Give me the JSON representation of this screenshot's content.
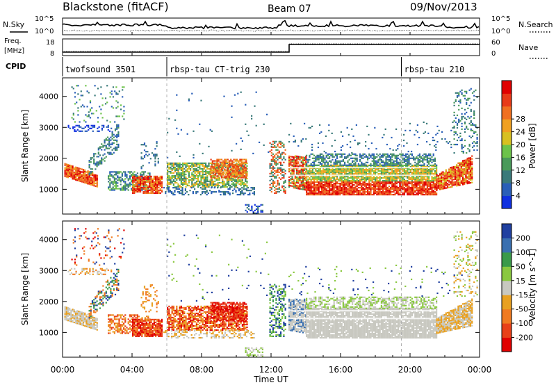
{
  "header": {
    "station": "Blackstone (fitACF)",
    "beam": "Beam 07",
    "date": "09/Nov/2013"
  },
  "noise_panel": {
    "left_label": "N.Sky",
    "right_label": "N.Search",
    "left_ticks": [
      "10^5",
      "10^0"
    ],
    "right_ticks": [
      "10^5",
      "10^0"
    ]
  },
  "freq_panel": {
    "left_label_line1": "Freq.",
    "left_label_line2": "[MHz]",
    "left_ticks": [
      "18",
      "8"
    ],
    "right_ticks": [
      "60",
      "0"
    ],
    "right_label": "Nave",
    "cpid_label": "CPID"
  },
  "cpid_segments": [
    {
      "start_hour": 0.0,
      "label": "twofsound 3501"
    },
    {
      "start_hour": 6.0,
      "label": "rbsp-tau CT-trig 230"
    },
    {
      "start_hour": 19.5,
      "label": "rbsp-tau 210"
    }
  ],
  "chart_data": [
    {
      "type": "heatmap",
      "name": "power",
      "ylabel": "Slant Range [km]",
      "ylim": [
        200,
        4600
      ],
      "yticks": [
        "1000",
        "2000",
        "3000",
        "4000"
      ],
      "xlim_hours": [
        0,
        24
      ],
      "colorbar_label": "Power [dB]",
      "colorbar_ticks": [
        "4",
        "8",
        "12",
        "16",
        "20",
        "24",
        "28"
      ],
      "colorbar_colors": [
        "#1030e0",
        "#2a5fb8",
        "#3a7a7a",
        "#4a9a5a",
        "#6cc34a",
        "#d8c020",
        "#f0a020",
        "#f07020",
        "#e83a18",
        "#e00000"
      ]
    },
    {
      "type": "heatmap",
      "name": "velocity",
      "ylabel": "Slant Range [km]",
      "ylim": [
        200,
        4600
      ],
      "yticks": [
        "1000",
        "2000",
        "3000",
        "4000"
      ],
      "xlim_hours": [
        0,
        24
      ],
      "colorbar_label": "Velocity [m s^-1]",
      "colorbar_ticks": [
        "200",
        "100",
        "50",
        "15",
        "-15",
        "-50",
        "-100",
        "-200"
      ],
      "colorbar_colors": [
        "#2040a0",
        "#3a70b0",
        "#3a9a4a",
        "#8ac840",
        "#c8c8c0",
        "#e8a020",
        "#f07a20",
        "#e84018",
        "#e00000"
      ]
    }
  ],
  "x_axis": {
    "ticks": [
      "00:00",
      "04:00",
      "08:00",
      "12:00",
      "16:00",
      "20:00",
      "00:00"
    ],
    "label": "Time UT"
  },
  "colors": {
    "axis": "#000000",
    "cpid_divider": "#b0b0b0"
  }
}
